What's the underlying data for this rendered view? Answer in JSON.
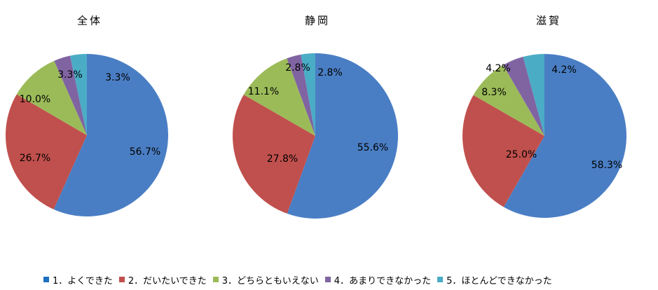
{
  "chart_data": [
    {
      "type": "pie",
      "title": "全体",
      "categories": [
        "1．よくできた",
        "2．だいたいできた",
        "3．どちらともいえない",
        "4．あまりできなかった",
        "5．ほとんどできなかった"
      ],
      "values": [
        56.7,
        26.7,
        10.0,
        3.3,
        3.3
      ],
      "labels": [
        "56.7%",
        "26.7%",
        "10.0%",
        "3.3%",
        "3.3%"
      ]
    },
    {
      "type": "pie",
      "title": "静岡",
      "categories": [
        "1．よくできた",
        "2．だいたいできた",
        "3．どちらともいえない",
        "4．あまりできなかった",
        "5．ほとんどできなかった"
      ],
      "values": [
        55.6,
        27.8,
        11.1,
        2.8,
        2.8
      ],
      "labels": [
        "55.6%",
        "27.8%",
        "11.1%",
        "2.8%",
        "2.8%"
      ]
    },
    {
      "type": "pie",
      "title": "滋賀",
      "categories": [
        "1．よくできた",
        "2．だいたいできた",
        "3．どちらともいえない",
        "4．あまりできなかった",
        "5．ほとんどできなかった"
      ],
      "values": [
        58.3,
        25.0,
        8.3,
        4.2,
        4.2
      ],
      "labels": [
        "58.3%",
        "25.0%",
        "8.3%",
        "4.2%",
        "4.2%"
      ]
    }
  ],
  "legend": {
    "placement": "bottom",
    "items": [
      {
        "label": "1．よくできた",
        "color": "#4a7ec4"
      },
      {
        "label": "2．だいたいできた",
        "color": "#c0504d"
      },
      {
        "label": "3．どちらともいえない",
        "color": "#9bbb59"
      },
      {
        "label": "4．あまりできなかった",
        "color": "#8064a2"
      },
      {
        "label": "5．ほとんどできなかった",
        "color": "#4bacc6"
      }
    ]
  },
  "colors": {
    "series": [
      "#4a7ec4",
      "#c0504d",
      "#9bbb59",
      "#8064a2",
      "#4bacc6"
    ],
    "legend_swatch_1": "#1f6fbf"
  }
}
